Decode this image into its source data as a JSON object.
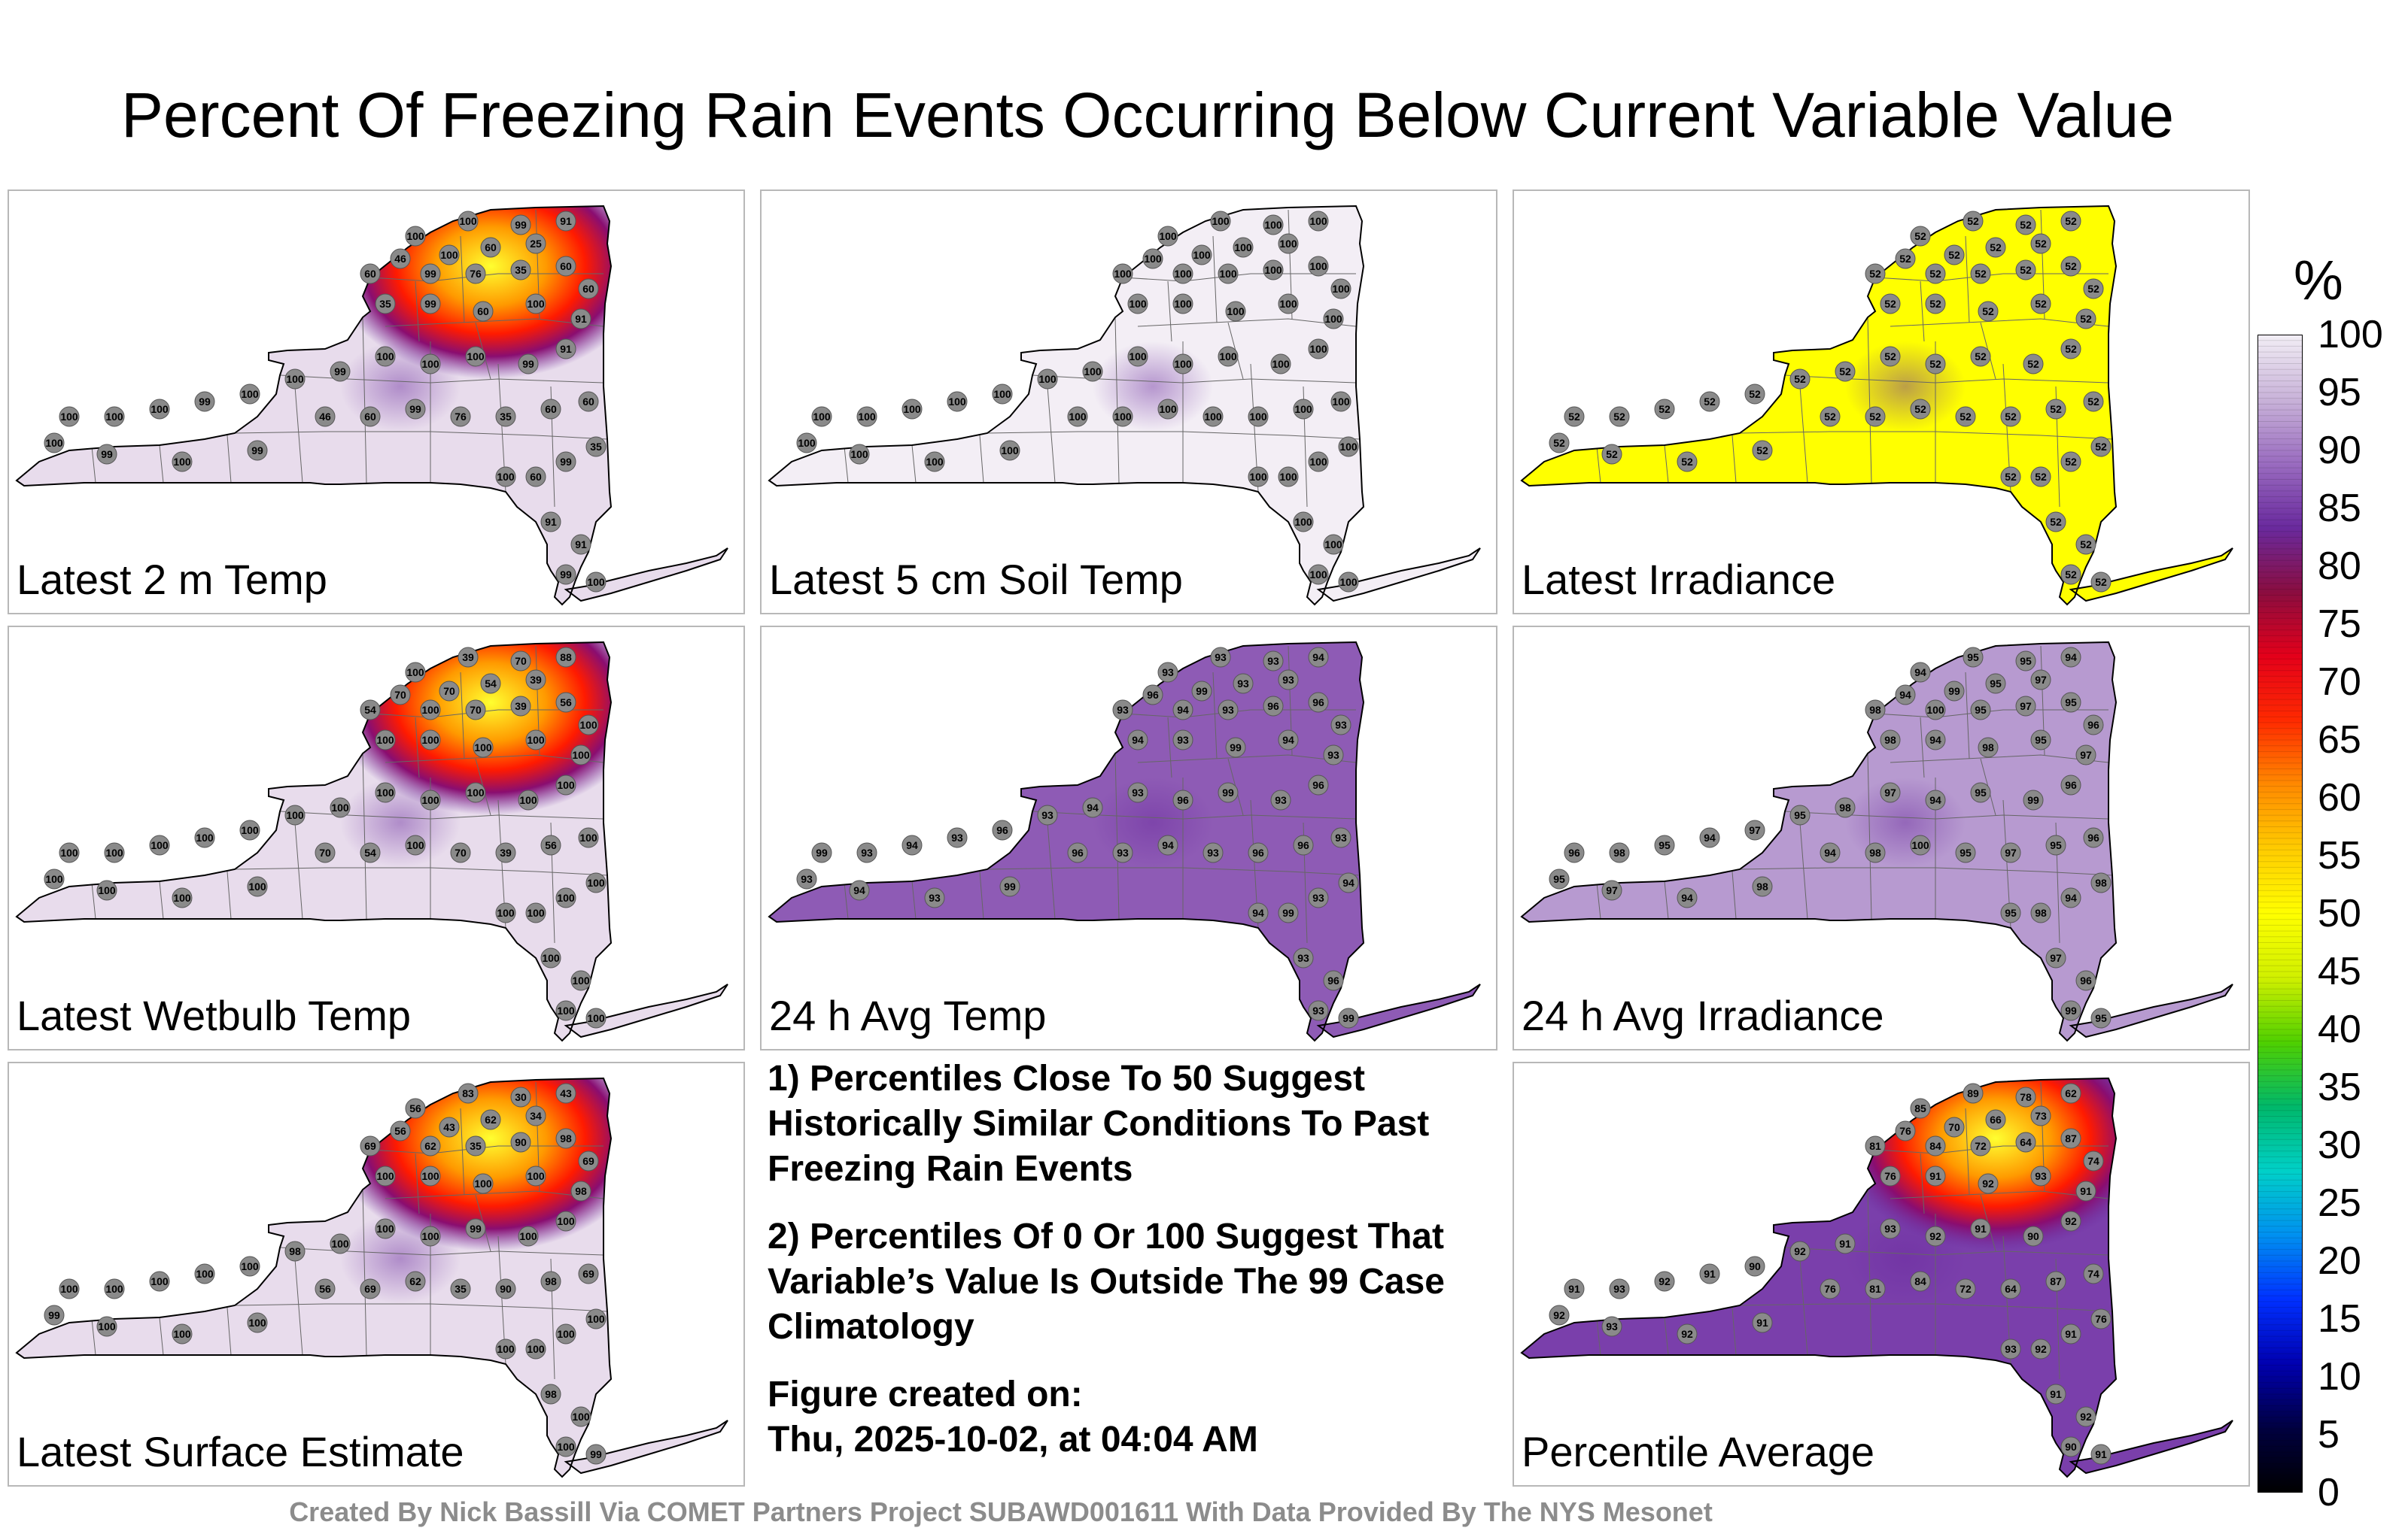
{
  "title": "Percent Of Freezing Rain Events Occurring Below Current Variable Value",
  "panels": [
    {
      "label": "Latest 2 m Temp",
      "base_color": "#e8dcec",
      "hotspot": "fire",
      "station_values": [
        "100",
        "100",
        "99",
        "91",
        "25",
        "60",
        "100",
        "46",
        "60",
        "99",
        "76",
        "35",
        "60",
        "60",
        "35",
        "99",
        "60",
        "100",
        "91",
        "91",
        "99",
        "100",
        "100",
        "100",
        "99",
        "100",
        "100",
        "99",
        "100",
        "100",
        "100",
        "100",
        "99",
        "100",
        "99"
      ]
    },
    {
      "label": "Latest 5 cm Soil Temp",
      "base_color": "#f3eef5",
      "hotspot": "none",
      "station_values": [
        "100",
        "100",
        "100",
        "100",
        "100",
        "100",
        "100",
        "100",
        "100",
        "100",
        "100",
        "100",
        "100",
        "100",
        "100",
        "100",
        "100",
        "100",
        "100",
        "100",
        "100",
        "100",
        "100",
        "100",
        "100",
        "100",
        "100",
        "100",
        "100",
        "100",
        "100",
        "100",
        "100",
        "100",
        "100"
      ]
    },
    {
      "label": "Latest Irradiance",
      "base_color": "#ffff00",
      "hotspot": "none",
      "station_values": [
        "52",
        "52",
        "52",
        "52",
        "52",
        "52",
        "52",
        "52",
        "52",
        "52",
        "52",
        "52",
        "52",
        "52",
        "52",
        "52",
        "52",
        "52",
        "52",
        "52",
        "52",
        "52",
        "52",
        "52",
        "52",
        "52",
        "52",
        "52",
        "52",
        "52",
        "52",
        "52",
        "52",
        "52",
        "52"
      ]
    },
    {
      "label": "Latest Wetbulb Temp",
      "base_color": "#e8dcec",
      "hotspot": "fire",
      "station_values": [
        "100",
        "39",
        "70",
        "88",
        "39",
        "54",
        "70",
        "70",
        "54",
        "100",
        "70",
        "39",
        "56",
        "100",
        "100",
        "100",
        "100",
        "100",
        "100",
        "100",
        "100",
        "100",
        "100",
        "100",
        "100",
        "100",
        "100",
        "100",
        "100",
        "100",
        "100",
        "100",
        "100",
        "100",
        "100"
      ]
    },
    {
      "label": "24 h Avg Temp",
      "base_color": "#8e5bb5",
      "hotspot": "none",
      "station_values": [
        "93",
        "93",
        "93",
        "94",
        "93",
        "93",
        "99",
        "96",
        "93",
        "94",
        "93",
        "96",
        "96",
        "93",
        "94",
        "93",
        "99",
        "94",
        "93",
        "96",
        "93",
        "99",
        "96",
        "93",
        "94",
        "93",
        "96",
        "93",
        "94",
        "93",
        "99",
        "93",
        "94",
        "93",
        "99"
      ]
    },
    {
      "label": "24 h Avg Irradiance",
      "base_color": "#b79ad0",
      "hotspot": "none",
      "station_values": [
        "94",
        "95",
        "95",
        "94",
        "97",
        "95",
        "99",
        "94",
        "98",
        "100",
        "95",
        "97",
        "95",
        "96",
        "98",
        "94",
        "98",
        "95",
        "97",
        "96",
        "99",
        "95",
        "94",
        "97",
        "98",
        "95",
        "97",
        "94",
        "95",
        "98",
        "96",
        "95",
        "97",
        "94",
        "98"
      ]
    },
    {
      "label": "Latest Surface Estimate",
      "base_color": "#e8dcec",
      "hotspot": "fire",
      "station_values": [
        "56",
        "83",
        "30",
        "43",
        "34",
        "62",
        "43",
        "56",
        "69",
        "62",
        "35",
        "90",
        "98",
        "69",
        "100",
        "100",
        "100",
        "100",
        "98",
        "100",
        "100",
        "99",
        "100",
        "100",
        "100",
        "98",
        "100",
        "100",
        "100",
        "100",
        "100",
        "99",
        "100",
        "100",
        "100"
      ]
    },
    {
      "label": "Percentile Average",
      "base_color": "#7a3fab",
      "hotspot": "fire",
      "station_values": [
        "85",
        "89",
        "78",
        "62",
        "73",
        "66",
        "70",
        "76",
        "81",
        "84",
        "72",
        "64",
        "87",
        "74",
        "76",
        "91",
        "92",
        "93",
        "91",
        "92",
        "90",
        "91",
        "92",
        "93",
        "91",
        "92",
        "90",
        "91",
        "92",
        "93",
        "91",
        "92",
        "93",
        "92",
        "91"
      ]
    }
  ],
  "notes": [
    "1) Percentiles Close To 50 Suggest Historically Similar Conditions To Past Freezing Rain Events",
    "2) Percentiles Of 0 Or 100 Suggest That Variable’s Value Is Outside The 99 Case Climatology"
  ],
  "created": {
    "label": "Figure created on:",
    "value": "Thu, 2025-10-02, at 04:04 AM"
  },
  "footer": "Created By Nick Bassill Via COMET Partners Project SUBAWD001611 With Data Provided By The NYS Mesonet",
  "colorbar": {
    "unit": "%",
    "ticks": [
      "100",
      "95",
      "90",
      "85",
      "80",
      "75",
      "70",
      "65",
      "60",
      "55",
      "50",
      "45",
      "40",
      "35",
      "30",
      "25",
      "20",
      "15",
      "10",
      "5",
      "0"
    ],
    "colors": [
      "#f2eef5",
      "#c9b3d9",
      "#9a6cc0",
      "#6a2a9e",
      "#8a0d40",
      "#e4001a",
      "#ff2a00",
      "#ff8a00",
      "#ffcc00",
      "#ffff00",
      "#d0f000",
      "#4fd000",
      "#00b86a",
      "#00d0c8",
      "#0090f0",
      "#0030ff",
      "#0000b0",
      "#000040",
      "#000000"
    ]
  }
}
